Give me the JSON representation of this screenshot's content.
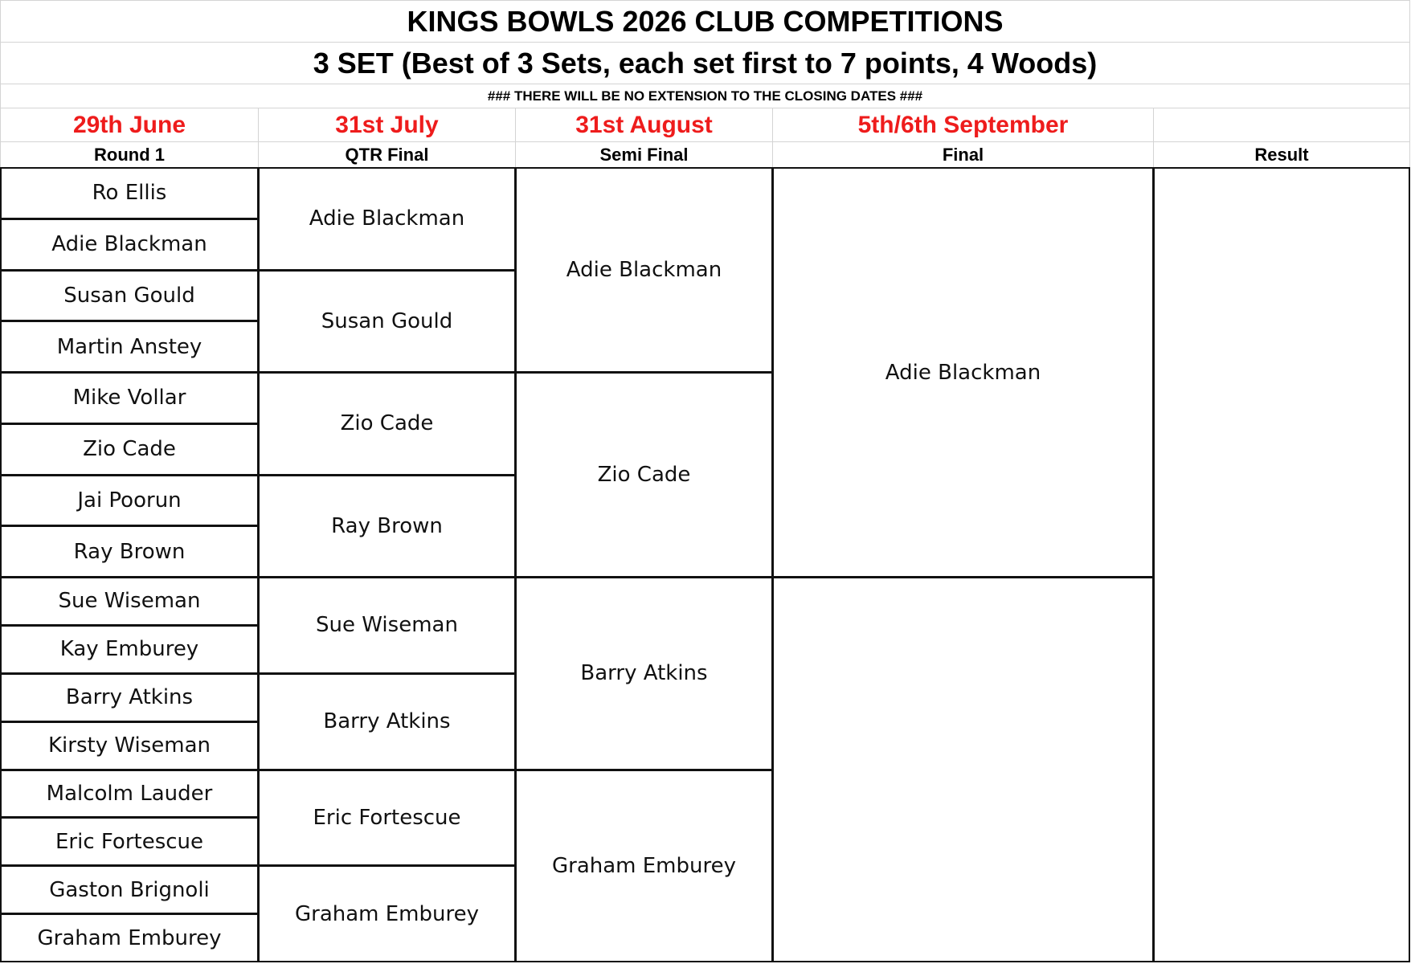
{
  "header": {
    "title": "KINGS BOWLS 2026 CLUB COMPETITIONS",
    "subtitle": "3 SET (Best of 3 Sets, each set first to 7 points, 4 Woods)",
    "notice": "###  THERE WILL BE NO EXTENSION TO THE CLOSING DATES  ###"
  },
  "columns": [
    {
      "date": "29th June",
      "label": "Round 1"
    },
    {
      "date": "31st July",
      "label": "QTR Final"
    },
    {
      "date": "31st August",
      "label": "Semi Final"
    },
    {
      "date": "5th/6th September",
      "label": "Final"
    },
    {
      "label": "Result"
    }
  ],
  "round1": [
    "Ro Ellis",
    "Adie Blackman",
    "Susan Gould",
    "Martin Anstey",
    "Mike Vollar",
    "Zio Cade",
    "Jai Poorun",
    "Ray Brown",
    "Sue Wiseman",
    "Kay Emburey",
    "Barry Atkins",
    "Kirsty Wiseman",
    "Malcolm Lauder",
    "Eric Fortescue",
    "Gaston Brignoli",
    "Graham Emburey"
  ],
  "qtr_final": [
    "Adie Blackman",
    "Susan Gould",
    "Zio Cade",
    "Ray Brown",
    "Sue Wiseman",
    "Barry Atkins",
    "Eric Fortescue",
    "Graham Emburey"
  ],
  "semi_final": [
    "Adie Blackman",
    "Zio Cade",
    "Barry Atkins",
    "Graham Emburey"
  ],
  "final": [
    "Adie Blackman"
  ]
}
